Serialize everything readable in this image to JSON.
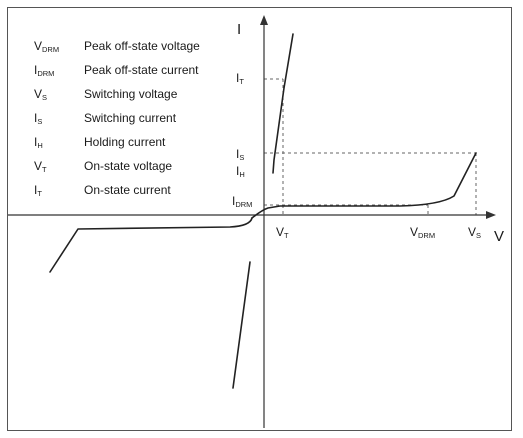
{
  "legend": [
    {
      "symbol": "V",
      "sub": "DRM",
      "description": "Peak off-state voltage"
    },
    {
      "symbol": "I",
      "sub": "DRM",
      "description": "Peak off-state current"
    },
    {
      "symbol": "V",
      "sub": "S",
      "description": "Switching voltage"
    },
    {
      "symbol": "I",
      "sub": "S",
      "description": "Switching current"
    },
    {
      "symbol": "I",
      "sub": "H",
      "description": "Holding current"
    },
    {
      "symbol": "V",
      "sub": "T",
      "description": "On-state voltage"
    },
    {
      "symbol": "I",
      "sub": "T",
      "description": "On-state current"
    }
  ],
  "axes": {
    "y_label": "I",
    "x_label": "V"
  },
  "labels": {
    "i_t": {
      "main": "I",
      "sub": "T"
    },
    "i_s": {
      "main": "I",
      "sub": "S"
    },
    "i_h": {
      "main": "I",
      "sub": "H"
    },
    "i_drm": {
      "main": "I",
      "sub": "DRM"
    },
    "v_t": {
      "main": "V",
      "sub": "T"
    },
    "v_drm": {
      "main": "V",
      "sub": "DRM"
    },
    "v_s": {
      "main": "V",
      "sub": "S"
    }
  },
  "colors": {
    "curve": "#222222",
    "axis": "#333333",
    "guide": "#666666",
    "frame": "#555555"
  }
}
